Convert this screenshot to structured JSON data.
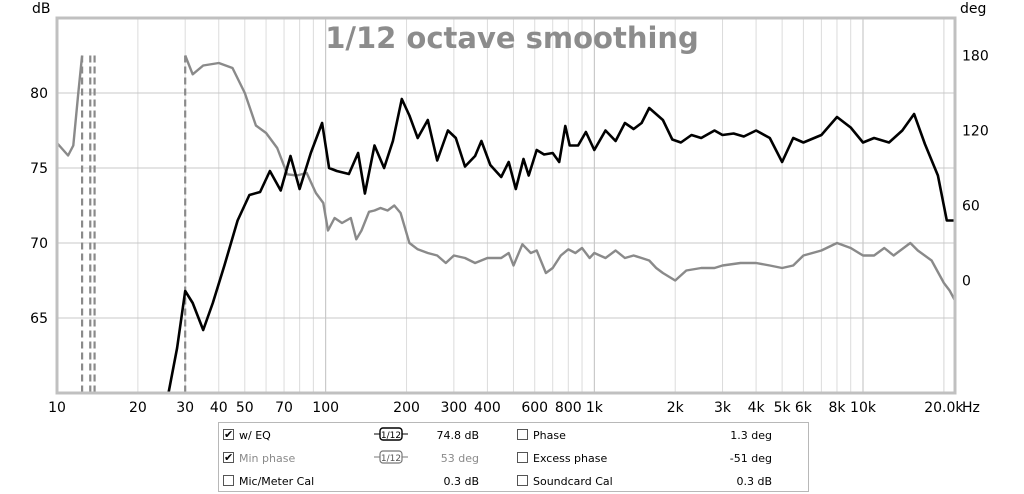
{
  "chart_data": {
    "type": "line",
    "title": "1/12 octave smoothing",
    "ylabel_left": "dB",
    "ylabel_right": "deg",
    "xunit": "Hz",
    "xscale": "log",
    "xlim": [
      10,
      22000
    ],
    "ylim_left": [
      60,
      85
    ],
    "ylim_right": [
      -90,
      210
    ],
    "grid": true,
    "x_ticks": [
      "10",
      "20",
      "30",
      "40",
      "50",
      "70",
      "100",
      "200",
      "300",
      "400",
      "600",
      "800",
      "1k",
      "2k",
      "3k",
      "4k",
      "5k",
      "6k",
      "8k",
      "10k",
      "20.0k"
    ],
    "y_ticks_left": [
      "80",
      "75",
      "70",
      "65"
    ],
    "y_ticks_right": [
      "180",
      "120",
      "60",
      "0"
    ],
    "series": [
      {
        "name": "w/ EQ",
        "axis": "left",
        "color": "#000000",
        "points": [
          [
            26,
            60
          ],
          [
            28,
            63
          ],
          [
            30,
            66.8
          ],
          [
            32,
            66
          ],
          [
            35,
            64.2
          ],
          [
            38,
            66
          ],
          [
            42,
            68.5
          ],
          [
            47,
            71.5
          ],
          [
            52,
            73.2
          ],
          [
            57,
            73.4
          ],
          [
            62,
            74.8
          ],
          [
            68,
            73.5
          ],
          [
            74,
            75.8
          ],
          [
            80,
            73.6
          ],
          [
            88,
            76
          ],
          [
            97,
            78
          ],
          [
            103,
            75
          ],
          [
            110,
            74.8
          ],
          [
            122,
            74.6
          ],
          [
            132,
            76
          ],
          [
            140,
            73.3
          ],
          [
            152,
            76.5
          ],
          [
            165,
            75
          ],
          [
            178,
            76.8
          ],
          [
            192,
            79.6
          ],
          [
            205,
            78.5
          ],
          [
            220,
            77
          ],
          [
            240,
            78.2
          ],
          [
            260,
            75.5
          ],
          [
            285,
            77.5
          ],
          [
            305,
            77
          ],
          [
            330,
            75.1
          ],
          [
            360,
            75.8
          ],
          [
            380,
            76.8
          ],
          [
            410,
            75.2
          ],
          [
            450,
            74.4
          ],
          [
            480,
            75.4
          ],
          [
            510,
            73.6
          ],
          [
            545,
            75.6
          ],
          [
            570,
            74.5
          ],
          [
            610,
            76.2
          ],
          [
            650,
            75.9
          ],
          [
            700,
            76
          ],
          [
            740,
            75.4
          ],
          [
            780,
            77.8
          ],
          [
            810,
            76.5
          ],
          [
            870,
            76.5
          ],
          [
            930,
            77.4
          ],
          [
            1000,
            76.2
          ],
          [
            1100,
            77.5
          ],
          [
            1200,
            76.8
          ],
          [
            1300,
            78
          ],
          [
            1400,
            77.6
          ],
          [
            1500,
            78
          ],
          [
            1600,
            79
          ],
          [
            1800,
            78.2
          ],
          [
            1950,
            76.9
          ],
          [
            2100,
            76.7
          ],
          [
            2300,
            77.2
          ],
          [
            2500,
            77
          ],
          [
            2800,
            77.5
          ],
          [
            3000,
            77.2
          ],
          [
            3300,
            77.3
          ],
          [
            3600,
            77.1
          ],
          [
            4000,
            77.5
          ],
          [
            4500,
            77
          ],
          [
            5000,
            75.4
          ],
          [
            5500,
            77
          ],
          [
            6000,
            76.7
          ],
          [
            7000,
            77.2
          ],
          [
            8000,
            78.4
          ],
          [
            9000,
            77.7
          ],
          [
            10000,
            76.7
          ],
          [
            11000,
            77
          ],
          [
            12500,
            76.7
          ],
          [
            14000,
            77.5
          ],
          [
            15500,
            78.6
          ],
          [
            17000,
            76.6
          ],
          [
            19000,
            74.5
          ],
          [
            20500,
            71.5
          ],
          [
            22000,
            71.5
          ]
        ]
      },
      {
        "name": "Min phase",
        "axis": "right",
        "color": "#8a8a8a",
        "points": [
          [
            30,
            180
          ],
          [
            32,
            165
          ],
          [
            35,
            172
          ],
          [
            40,
            174
          ],
          [
            45,
            170
          ],
          [
            50,
            150
          ],
          [
            55,
            124
          ],
          [
            60,
            118
          ],
          [
            66,
            106
          ],
          [
            72,
            85
          ],
          [
            78,
            84
          ],
          [
            85,
            86
          ],
          [
            92,
            70
          ],
          [
            98,
            62
          ],
          [
            102,
            40
          ],
          [
            108,
            50
          ],
          [
            115,
            46
          ],
          [
            124,
            50
          ],
          [
            130,
            33
          ],
          [
            136,
            40
          ],
          [
            145,
            55
          ],
          [
            152,
            56
          ],
          [
            160,
            58
          ],
          [
            170,
            56
          ],
          [
            180,
            60
          ],
          [
            190,
            54
          ],
          [
            205,
            30
          ],
          [
            220,
            25
          ],
          [
            240,
            22
          ],
          [
            260,
            20
          ],
          [
            280,
            14
          ],
          [
            300,
            20
          ],
          [
            330,
            18
          ],
          [
            360,
            14
          ],
          [
            400,
            18
          ],
          [
            450,
            18
          ],
          [
            480,
            22
          ],
          [
            500,
            12
          ],
          [
            540,
            29
          ],
          [
            580,
            22
          ],
          [
            610,
            24
          ],
          [
            660,
            6
          ],
          [
            700,
            10
          ],
          [
            750,
            20
          ],
          [
            800,
            25
          ],
          [
            850,
            22
          ],
          [
            900,
            26
          ],
          [
            960,
            18
          ],
          [
            1000,
            22
          ],
          [
            1100,
            18
          ],
          [
            1200,
            24
          ],
          [
            1300,
            18
          ],
          [
            1400,
            20
          ],
          [
            1500,
            18
          ],
          [
            1600,
            16
          ],
          [
            1700,
            10
          ],
          [
            1800,
            6
          ],
          [
            2000,
            0
          ],
          [
            2200,
            8
          ],
          [
            2500,
            10
          ],
          [
            2800,
            10
          ],
          [
            3000,
            12
          ],
          [
            3500,
            14
          ],
          [
            4000,
            14
          ],
          [
            4500,
            12
          ],
          [
            5000,
            10
          ],
          [
            5500,
            12
          ],
          [
            6000,
            20
          ],
          [
            7000,
            24
          ],
          [
            8000,
            30
          ],
          [
            9000,
            26
          ],
          [
            10000,
            20
          ],
          [
            11000,
            20
          ],
          [
            12000,
            26
          ],
          [
            13000,
            20
          ],
          [
            15000,
            30
          ],
          [
            16000,
            24
          ],
          [
            18000,
            16
          ],
          [
            20000,
            -2
          ],
          [
            21000,
            -8
          ],
          [
            22000,
            -16
          ]
        ]
      },
      {
        "name": "Min phase wrap (low freq)",
        "axis": "right",
        "color": "#8a8a8a",
        "points": [
          [
            10,
            110
          ],
          [
            11,
            100
          ],
          [
            11.5,
            108
          ],
          [
            12,
            150
          ],
          [
            12.4,
            180
          ]
        ]
      }
    ],
    "phase_wrap_markers_hz": [
      12.4,
      13.3,
      13.8,
      30
    ]
  },
  "legend": {
    "rows": [
      {
        "check1": "✔",
        "label1": "w/ EQ",
        "smooth": "1/12",
        "value1": "74.8 dB",
        "label2": "Phase",
        "value2": "1.3 deg"
      },
      {
        "check1": "✔",
        "label1": "Min phase",
        "smooth": "1/12",
        "value1": "53 deg",
        "label2": "Excess phase",
        "value2": "-51 deg"
      },
      {
        "check1": "",
        "label1": "Mic/Meter Cal",
        "smooth": "",
        "value1": "0.3 dB",
        "label2": "Soundcard Cal",
        "value2": "0.3 dB"
      }
    ]
  }
}
